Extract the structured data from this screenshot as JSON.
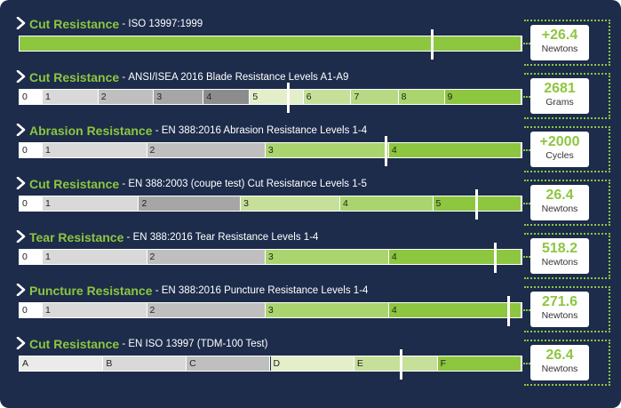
{
  "colors": {
    "background": "#1d2c4b",
    "accent": "#8dc63f",
    "gray_light": "#d9d9d9",
    "gray_mid": "#bfbfbf",
    "gray_dark": "#a6a6a6",
    "gray_darker": "#8c8c8c",
    "green_pale": "#e2efc9",
    "green_light": "#c6e09a",
    "green_mid": "#aad56e",
    "green_full": "#8dc63f"
  },
  "rows": [
    {
      "title": "Cut Resistance",
      "separator": " - ",
      "subtitle": "ISO 13997:1999",
      "value": "+26.4",
      "unit": "Newtons",
      "marker_fraction": 0.818,
      "segments": [
        {
          "label": "",
          "from": 0,
          "to": 1,
          "color": "#8dc63f"
        }
      ]
    },
    {
      "title": "Cut Resistance",
      "separator": " - ",
      "subtitle": "ANSI/ISEA 2016 Blade Resistance Levels A1-A9",
      "value": "2681",
      "unit": "Grams",
      "marker_fraction": 0.532,
      "segments": [
        {
          "label": "0",
          "from": 0.0,
          "to": 0.046,
          "color": "#ffffff"
        },
        {
          "label": "1",
          "from": 0.046,
          "to": 0.157,
          "color": "#d9d9d9"
        },
        {
          "label": "2",
          "from": 0.157,
          "to": 0.268,
          "color": "#bfbfbf"
        },
        {
          "label": "3",
          "from": 0.268,
          "to": 0.367,
          "color": "#a6a6a6"
        },
        {
          "label": "4",
          "from": 0.367,
          "to": 0.459,
          "color": "#8c8c8c"
        },
        {
          "label": "5",
          "from": 0.459,
          "to": 0.566,
          "color": "#e2efc9"
        },
        {
          "label": "6",
          "from": 0.566,
          "to": 0.661,
          "color": "#c6e09a"
        },
        {
          "label": "7",
          "from": 0.661,
          "to": 0.755,
          "color": "#b8da84"
        },
        {
          "label": "8",
          "from": 0.755,
          "to": 0.847,
          "color": "#aad56e"
        },
        {
          "label": "9",
          "from": 0.847,
          "to": 1.0,
          "color": "#8dc63f"
        }
      ]
    },
    {
      "title": "Abrasion Resistance",
      "separator": " - ",
      "subtitle": "EN 388:2016 Abrasion Resistance Levels 1-4",
      "value": "+2000",
      "unit": "Cycles",
      "marker_fraction": 0.726,
      "segments": [
        {
          "label": "0",
          "from": 0.0,
          "to": 0.046,
          "color": "#ffffff"
        },
        {
          "label": "1",
          "from": 0.046,
          "to": 0.254,
          "color": "#d9d9d9"
        },
        {
          "label": "2",
          "from": 0.254,
          "to": 0.49,
          "color": "#bfbfbf"
        },
        {
          "label": "3",
          "from": 0.49,
          "to": 0.736,
          "color": "#aad56e"
        },
        {
          "label": "4",
          "from": 0.736,
          "to": 1.0,
          "color": "#8dc63f"
        }
      ]
    },
    {
      "title": "Cut Resistance",
      "separator": " - ",
      "subtitle": "EN 388:2003 (coupe test) Cut Resistance Levels 1-5",
      "value": "26.4",
      "unit": "Newtons",
      "marker_fraction": 0.907,
      "segments": [
        {
          "label": "0",
          "from": 0.0,
          "to": 0.046,
          "color": "#ffffff"
        },
        {
          "label": "1",
          "from": 0.046,
          "to": 0.238,
          "color": "#d9d9d9"
        },
        {
          "label": "2",
          "from": 0.238,
          "to": 0.441,
          "color": "#a6a6a6"
        },
        {
          "label": "3",
          "from": 0.441,
          "to": 0.639,
          "color": "#c6e09a"
        },
        {
          "label": "4",
          "from": 0.639,
          "to": 0.824,
          "color": "#aad56e"
        },
        {
          "label": "5",
          "from": 0.824,
          "to": 1.0,
          "color": "#8dc63f"
        }
      ]
    },
    {
      "title": "Tear Resistance",
      "separator": " - ",
      "subtitle": "EN 388:2016 Tear Resistance Levels 1-4",
      "value": "518.2",
      "unit": "Newtons",
      "marker_fraction": 0.944,
      "segments": [
        {
          "label": "0",
          "from": 0.0,
          "to": 0.046,
          "color": "#ffffff"
        },
        {
          "label": "1",
          "from": 0.046,
          "to": 0.254,
          "color": "#d9d9d9"
        },
        {
          "label": "2",
          "from": 0.254,
          "to": 0.49,
          "color": "#bfbfbf"
        },
        {
          "label": "3",
          "from": 0.49,
          "to": 0.736,
          "color": "#aad56e"
        },
        {
          "label": "4",
          "from": 0.736,
          "to": 1.0,
          "color": "#8dc63f"
        }
      ]
    },
    {
      "title": "Puncture Resistance",
      "separator": " - ",
      "subtitle": "EN 388:2016 Puncture Resistance Levels 1-4",
      "value": "271.6",
      "unit": "Newtons",
      "marker_fraction": 0.97,
      "segments": [
        {
          "label": "0",
          "from": 0.0,
          "to": 0.046,
          "color": "#ffffff"
        },
        {
          "label": "1",
          "from": 0.046,
          "to": 0.254,
          "color": "#d9d9d9"
        },
        {
          "label": "2",
          "from": 0.254,
          "to": 0.49,
          "color": "#bfbfbf"
        },
        {
          "label": "3",
          "from": 0.49,
          "to": 0.736,
          "color": "#aad56e"
        },
        {
          "label": "4",
          "from": 0.736,
          "to": 1.0,
          "color": "#8dc63f"
        }
      ]
    },
    {
      "title": "Cut Resistance",
      "separator": " - ",
      "subtitle": "EN ISO 13997 (TDM-100 Test)",
      "value": "26.4",
      "unit": "Newtons",
      "marker_fraction": 0.757,
      "segments": [
        {
          "label": "A",
          "from": 0.0,
          "to": 0.167,
          "color": "#ebebeb"
        },
        {
          "label": "B",
          "from": 0.167,
          "to": 0.333,
          "color": "#d9d9d9"
        },
        {
          "label": "C",
          "from": 0.333,
          "to": 0.5,
          "color": "#bfbfbf"
        },
        {
          "label": "D",
          "from": 0.5,
          "to": 0.667,
          "color": "#e2efc9"
        },
        {
          "label": "E",
          "from": 0.667,
          "to": 0.833,
          "color": "#c6e09a"
        },
        {
          "label": "F",
          "from": 0.833,
          "to": 1.0,
          "color": "#8dc63f"
        }
      ]
    }
  ]
}
